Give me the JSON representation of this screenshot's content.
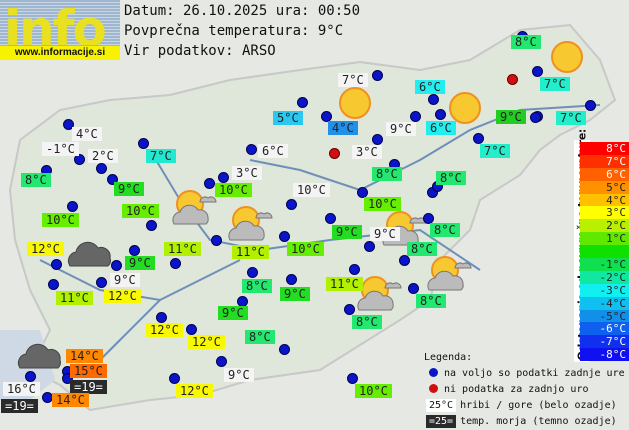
{
  "logo": {
    "text": "info",
    "url": "www.informacije.si"
  },
  "header": {
    "date_line": "Datum: 26.10.2025 ura: 00:50",
    "avg_temp_line": "Povprečna temperatura: 9°C",
    "source_line": "Vir podatkov: ARSO"
  },
  "map": {
    "labels": [
      {
        "text": "4°C",
        "bg": "#f4f4f4"
      },
      {
        "text": "-1°C",
        "bg": "#f4f4f4"
      },
      {
        "text": "2°C",
        "bg": "#f4f4f4"
      },
      {
        "text": "7°C",
        "bg": "#22e8d0"
      },
      {
        "text": "8°C",
        "bg": "#22e870"
      },
      {
        "text": "9°C",
        "bg": "#22dd22"
      },
      {
        "text": "10°C",
        "bg": "#66ee00"
      },
      {
        "text": "10°C",
        "bg": "#66ee00"
      },
      {
        "text": "10°C",
        "bg": "#66ee00"
      },
      {
        "text": "3°C",
        "bg": "#f4f4f4"
      },
      {
        "text": "6°C",
        "bg": "#f4f4f4"
      },
      {
        "text": "5°C",
        "bg": "#2ac8f0"
      },
      {
        "text": "4°C",
        "bg": "#2090e8"
      },
      {
        "text": "7°C",
        "bg": "#f4f4f4"
      },
      {
        "text": "9°C",
        "bg": "#f4f4f4"
      },
      {
        "text": "3°C",
        "bg": "#f4f4f4"
      },
      {
        "text": "8°C",
        "bg": "#22e870"
      },
      {
        "text": "6°C",
        "bg": "#22eef0"
      },
      {
        "text": "6°C",
        "bg": "#22eef0"
      },
      {
        "text": "7°C",
        "bg": "#22eecc"
      },
      {
        "text": "8°C",
        "bg": "#22e870"
      },
      {
        "text": "8°C",
        "bg": "#22e870"
      },
      {
        "text": "7°C",
        "bg": "#22eecc"
      },
      {
        "text": "9°C",
        "bg": "#22cc22"
      },
      {
        "text": "7°C",
        "bg": "#22eecc"
      },
      {
        "text": "10°C",
        "bg": "#f4f4f4"
      },
      {
        "text": "10°C",
        "bg": "#66ee00"
      },
      {
        "text": "9°C",
        "bg": "#22dd22"
      },
      {
        "text": "9°C",
        "bg": "#f4f4f4"
      },
      {
        "text": "10°C",
        "bg": "#66ee00"
      },
      {
        "text": "8°C",
        "bg": "#22e870"
      },
      {
        "text": "8°C",
        "bg": "#22e870"
      },
      {
        "text": "11°C",
        "bg": "#b0f000"
      },
      {
        "text": "11°C",
        "bg": "#b0f000"
      },
      {
        "text": "12°C",
        "bg": "#f8f800"
      },
      {
        "text": "9°C",
        "bg": "#22dd22"
      },
      {
        "text": "9°C",
        "bg": "#f4f4f4"
      },
      {
        "text": "11°C",
        "bg": "#b0f000"
      },
      {
        "text": "12°C",
        "bg": "#f8f800"
      },
      {
        "text": "8°C",
        "bg": "#22e870"
      },
      {
        "text": "9°C",
        "bg": "#22dd22"
      },
      {
        "text": "11°C",
        "bg": "#b0f000"
      },
      {
        "text": "9°C",
        "bg": "#22dd22"
      },
      {
        "text": "12°C",
        "bg": "#f8f800"
      },
      {
        "text": "12°C",
        "bg": "#f8f800"
      },
      {
        "text": "8°C",
        "bg": "#22e870"
      },
      {
        "text": "8°C",
        "bg": "#22e870"
      },
      {
        "text": "8°C",
        "bg": "#22e870"
      },
      {
        "text": "14°C",
        "bg": "#ff8800"
      },
      {
        "text": "15°C",
        "bg": "#ff6a00"
      },
      {
        "text": "=19=",
        "bg": "#2a2a2a"
      },
      {
        "text": "16°C",
        "bg": "#f4f4f4"
      },
      {
        "text": "=19=",
        "bg": "#2a2a2a"
      },
      {
        "text": "14°C",
        "bg": "#ff8800"
      },
      {
        "text": "12°C",
        "bg": "#f8f800"
      },
      {
        "text": "9°C",
        "bg": "#f4f4f4"
      },
      {
        "text": "10°C",
        "bg": "#66ee00"
      }
    ],
    "station_status_colors": {
      "available": "#0a14c8",
      "missing": "#d01010"
    },
    "weather_icons": [
      "sun",
      "sun",
      "sun",
      "sun-cloud",
      "sun-cloud",
      "sun-cloud",
      "sun-cloud",
      "sun-cloud",
      "cloud",
      "cloud"
    ]
  },
  "scale": {
    "title": "Odstopanje od povprečne temperature:",
    "rows": [
      {
        "text": "8°C",
        "bg": "#ff0000",
        "fg": "#fff"
      },
      {
        "text": "7°C",
        "bg": "#ff3000",
        "fg": "#fff"
      },
      {
        "text": "6°C",
        "bg": "#ff6000",
        "fg": "#fff"
      },
      {
        "text": "5°C",
        "bg": "#ff9000",
        "fg": "#222"
      },
      {
        "text": "4°C",
        "bg": "#ffc000",
        "fg": "#222"
      },
      {
        "text": "3°C",
        "bg": "#ffff00",
        "fg": "#222"
      },
      {
        "text": "2°C",
        "bg": "#b8f000",
        "fg": "#222"
      },
      {
        "text": "1°C",
        "bg": "#60e800",
        "fg": "#222"
      },
      {
        "text": "",
        "bg": "#10e000",
        "fg": "#222"
      },
      {
        "text": "-1°C",
        "bg": "#10e050",
        "fg": "#222"
      },
      {
        "text": "-2°C",
        "bg": "#10e8a0",
        "fg": "#222"
      },
      {
        "text": "-3°C",
        "bg": "#10f0f0",
        "fg": "#222"
      },
      {
        "text": "-4°C",
        "bg": "#10c0f0",
        "fg": "#222"
      },
      {
        "text": "-5°C",
        "bg": "#1090e8",
        "fg": "#222"
      },
      {
        "text": "-6°C",
        "bg": "#1060f0",
        "fg": "#fff"
      },
      {
        "text": "-7°C",
        "bg": "#1030f0",
        "fg": "#fff"
      },
      {
        "text": "-8°C",
        "bg": "#1010f0",
        "fg": "#fff"
      }
    ]
  },
  "legend": {
    "title": "Legenda:",
    "available": "na voljo so podatki zadnje ure",
    "missing": "ni podatka za zadnjo uro",
    "mountain_sample": "25°C",
    "mountain_text": "hribi / gore (belo ozadje)",
    "sea_sample": "=25=",
    "sea_text": "temp. morja (temno ozadje)"
  }
}
